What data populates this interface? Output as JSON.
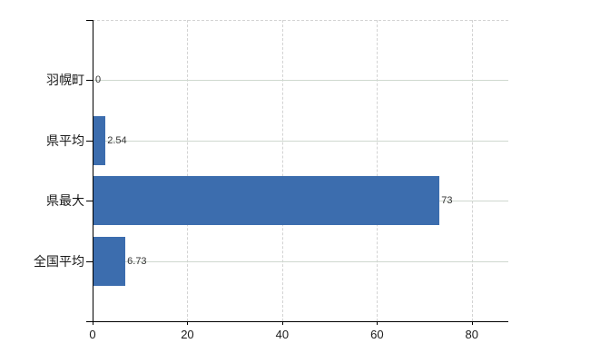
{
  "chart": {
    "background": "#ffffff"
  },
  "chart_data": {
    "type": "bar",
    "orientation": "horizontal",
    "title": "",
    "xlabel": "",
    "ylabel": "",
    "categories": [
      "羽幌町",
      "県平均",
      "県最大",
      "全国平均"
    ],
    "values": [
      0,
      2.54,
      73,
      6.73
    ],
    "value_labels": [
      "0",
      "2.54",
      "73",
      "6.73"
    ],
    "x_ticks": [
      0,
      20,
      40,
      60,
      80
    ],
    "x_tick_labels": [
      "0",
      "20",
      "40",
      "60",
      "80"
    ],
    "xlim": [
      0,
      87.7
    ],
    "grid": true,
    "legend": false,
    "colors": {
      "bar": "#3c6dae",
      "axis": "#000000",
      "h_grid": "#cfd8cf",
      "v_grid": "#d3d3d3",
      "top_border": "#d3d3d3",
      "category_label": "#1a1a1a",
      "tick_label": "#1a1a1a",
      "value_label": "#333333"
    }
  }
}
